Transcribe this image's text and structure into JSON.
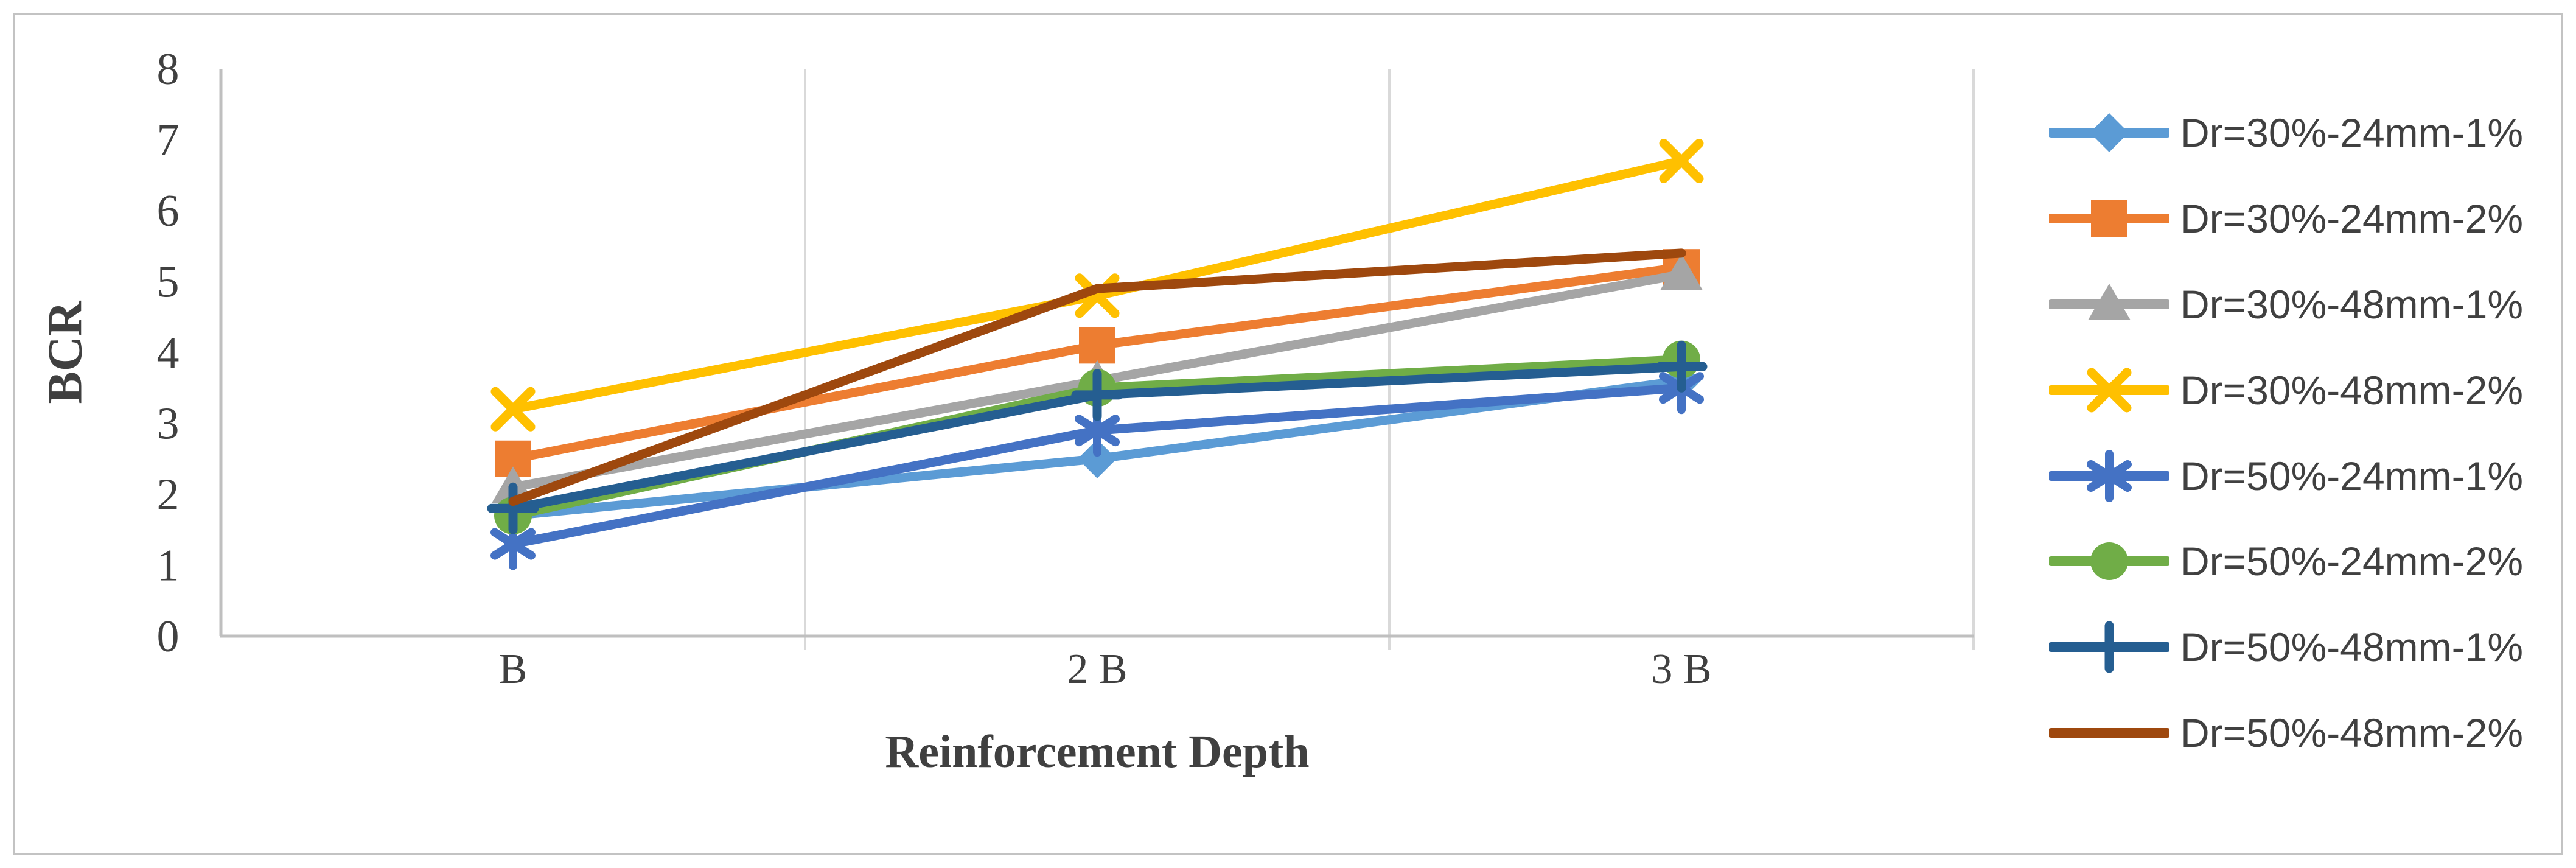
{
  "chart_data": {
    "type": "line",
    "title": "",
    "xlabel": "Reinforcement Depth",
    "ylabel": "BCR",
    "categories": [
      "B",
      "2 B",
      "3 B"
    ],
    "y_ticks": [
      "0",
      "1",
      "2",
      "3",
      "4",
      "5",
      "6",
      "7",
      "8"
    ],
    "ylim": [
      0,
      8
    ],
    "grid": "vertical-only",
    "legend_position": "right",
    "series": [
      {
        "name": "Dr=30%-24mm-1%",
        "color": "#5B9BD5",
        "marker": "diamond",
        "values": [
          1.7,
          2.5,
          3.6
        ]
      },
      {
        "name": "Dr=30%-24mm-2%",
        "color": "#ED7D31",
        "marker": "square",
        "values": [
          2.5,
          4.1,
          5.2
        ]
      },
      {
        "name": "Dr=30%-48mm-1%",
        "color": "#A5A5A5",
        "marker": "triangle",
        "values": [
          2.1,
          3.6,
          5.1
        ]
      },
      {
        "name": "Dr=30%-48mm-2%",
        "color": "#FFC000",
        "marker": "x",
        "values": [
          3.2,
          4.8,
          6.7
        ]
      },
      {
        "name": "Dr=50%-24mm-1%",
        "color": "#4472C4",
        "marker": "asterisk",
        "values": [
          1.3,
          2.9,
          3.5
        ]
      },
      {
        "name": "Dr=50%-24mm-2%",
        "color": "#70AD47",
        "marker": "circle",
        "values": [
          1.7,
          3.5,
          3.9
        ]
      },
      {
        "name": "Dr=50%-48mm-1%",
        "color": "#255E91",
        "marker": "plus",
        "values": [
          1.8,
          3.4,
          3.8
        ]
      },
      {
        "name": "Dr=50%-48mm-2%",
        "color": "#9E480E",
        "marker": "none",
        "values": [
          1.9,
          4.9,
          5.4
        ]
      }
    ],
    "colors": {
      "axis_line": "#BFBFBF",
      "grid_line": "#D9D9D9",
      "text": "#404040",
      "background": "#FFFFFF"
    }
  }
}
